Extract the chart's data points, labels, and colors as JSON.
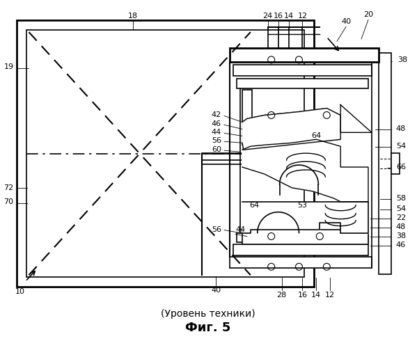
{
  "title": "Фиг. 5",
  "subtitle": "(Уровень техники)",
  "bg_color": "#ffffff",
  "line_color": "#000000",
  "fig_width": 5.99,
  "fig_height": 5.0,
  "dpi": 100
}
